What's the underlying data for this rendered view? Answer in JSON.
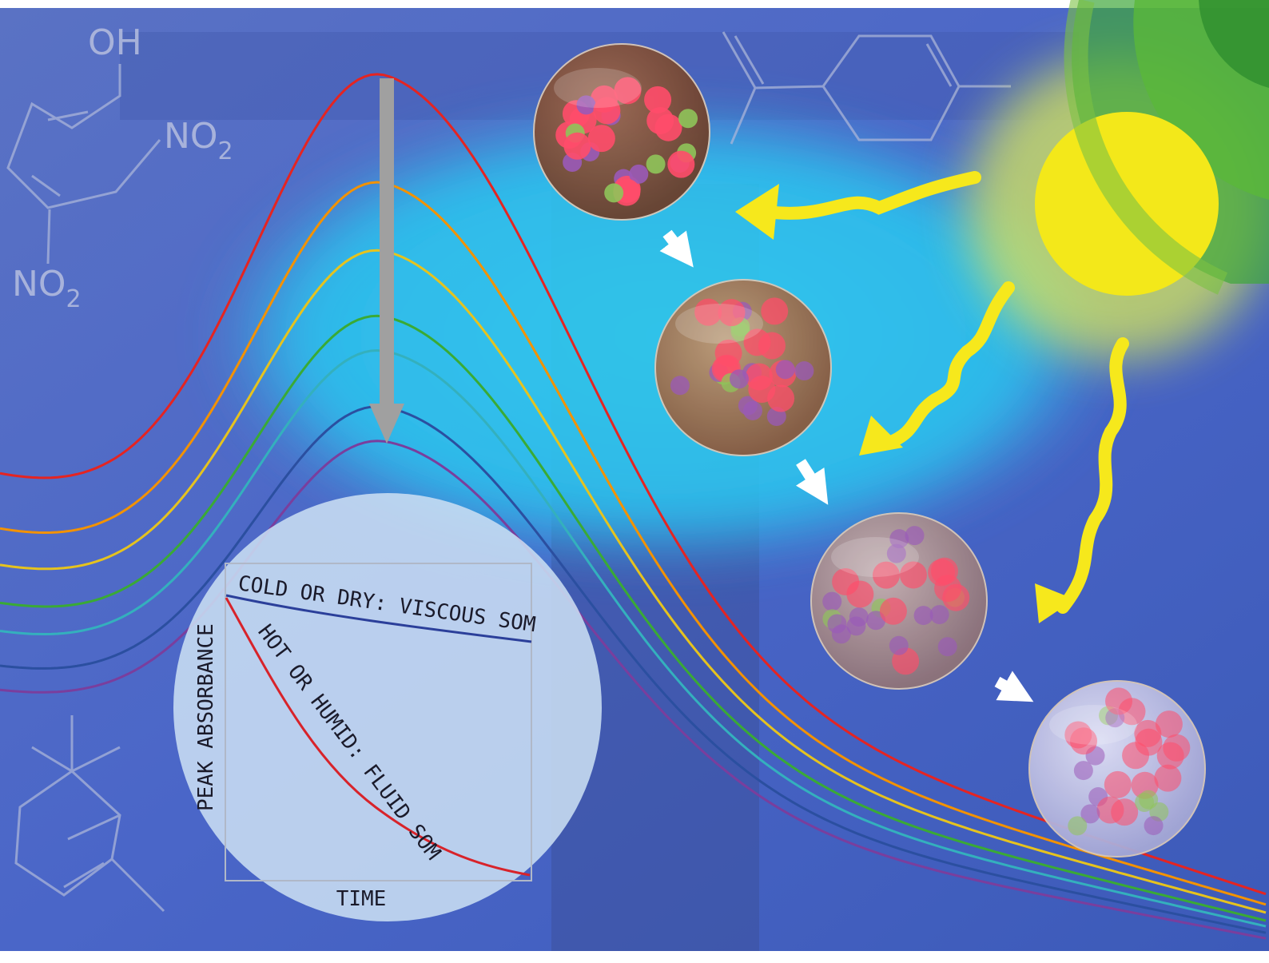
{
  "molecule": {
    "hydroxyl": "OH",
    "nitro_groups": [
      {
        "base": "NO",
        "sub": "2"
      },
      {
        "base": "NO",
        "sub": "2"
      }
    ]
  },
  "inset": {
    "y_label": "PEAK ABSORBANCE",
    "x_label": "TIME",
    "curves": [
      "COLD OR DRY: VISCOUS SOM",
      "HOT OR HUMID: FLUID SOM"
    ]
  }
}
